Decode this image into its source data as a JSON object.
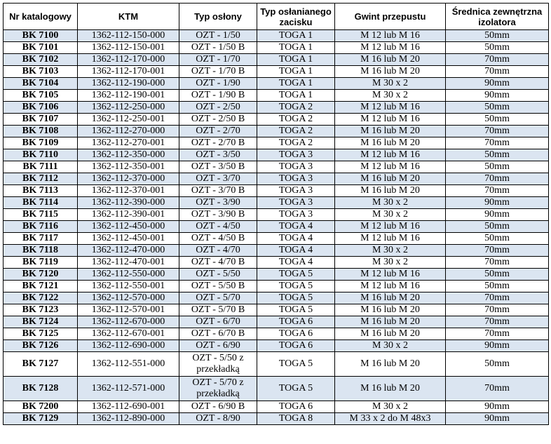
{
  "table": {
    "headers": [
      "Nr katalogowy",
      "KTM",
      "Typ osłony",
      "Typ osłanianego zacisku",
      "Gwint przepustu",
      "Średnica zewnętrzna izolatora"
    ],
    "rows": [
      [
        "BK 7100",
        "1362-112-150-000",
        "OZT - 1/50",
        "TOGA 1",
        "M 12 lub M 16",
        "50mm"
      ],
      [
        "BK 7101",
        "1362-112-150-001",
        "OZT - 1/50 B",
        "TOGA 1",
        "M 12 lub M 16",
        "50mm"
      ],
      [
        "BK 7102",
        "1362-112-170-000",
        "OZT - 1/70",
        "TOGA 1",
        "M 16 lub M 20",
        "70mm"
      ],
      [
        "BK 7103",
        "1362-112-170-001",
        "OZT - 1/70 B",
        "TOGA 1",
        "M 16 lub M 20",
        "70mm"
      ],
      [
        "BK 7104",
        "1362-112-190-000",
        "OZT - 1/90",
        "TOGA 1",
        "M 30 x 2",
        "90mm"
      ],
      [
        "BK 7105",
        "1362-112-190-001",
        "OZT - 1/90 B",
        "TOGA 1",
        "M 30 x 2",
        "90mm"
      ],
      [
        "BK 7106",
        "1362-112-250-000",
        "OZT - 2/50",
        "TOGA 2",
        "M 12 lub M 16",
        "50mm"
      ],
      [
        "BK 7107",
        "1362-112-250-001",
        "OZT - 2/50 B",
        "TOGA 2",
        "M 12 lub M 16",
        "50mm"
      ],
      [
        "BK 7108",
        "1362-112-270-000",
        "OZT - 2/70",
        "TOGA 2",
        "M 16 lub M 20",
        "70mm"
      ],
      [
        "BK 7109",
        "1362-112-270-001",
        "OZT - 2/70 B",
        "TOGA 2",
        "M 16 lub M 20",
        "70mm"
      ],
      [
        "BK 7110",
        "1362-112-350-000",
        "OZT - 3/50",
        "TOGA 3",
        "M 12 lub M 16",
        "50mm"
      ],
      [
        "BK 7111",
        "1362-112-350-001",
        "OZT - 3/50 B",
        "TOGA 3",
        "M 12 lub M 16",
        "50mm"
      ],
      [
        "BK 7112",
        "1362-112-370-000",
        "OZT - 3/70",
        "TOGA 3",
        "M 16 lub M 20",
        "70mm"
      ],
      [
        "BK 7113",
        "1362-112-370-001",
        "OZT - 3/70 B",
        "TOGA 3",
        "M 16 lub M 20",
        "70mm"
      ],
      [
        "BK 7114",
        "1362-112-390-000",
        "OZT - 3/90",
        "TOGA 3",
        "M 30 x 2",
        "90mm"
      ],
      [
        "BK 7115",
        "1362-112-390-001",
        "OZT - 3/90 B",
        "TOGA 3",
        "M 30 x 2",
        "90mm"
      ],
      [
        "BK 7116",
        "1362-112-450-000",
        "OZT - 4/50",
        "TOGA 4",
        "M 12 lub M 16",
        "50mm"
      ],
      [
        "BK 7117",
        "1362-112-450-001",
        "OZT - 4/50 B",
        "TOGA 4",
        "M 12 lub M 16",
        "50mm"
      ],
      [
        "BK 7118",
        "1362-112-470-000",
        "OZT - 4/70",
        "TOGA 4",
        "M 30 x 2",
        "70mm"
      ],
      [
        "BK 7119",
        "1362-112-470-001",
        "OZT - 4/70 B",
        "TOGA 4",
        "M 30 x 2",
        "70mm"
      ],
      [
        "BK 7120",
        "1362-112-550-000",
        "OZT - 5/50",
        "TOGA 5",
        "M 12 lub M 16",
        "50mm"
      ],
      [
        "BK 7121",
        "1362-112-550-001",
        "OZT - 5/50 B",
        "TOGA 5",
        "M 12 lub M 16",
        "50mm"
      ],
      [
        "BK 7122",
        "1362-112-570-000",
        "OZT - 5/70",
        "TOGA 5",
        "M 16 lub M 20",
        "70mm"
      ],
      [
        "BK 7123",
        "1362-112-570-001",
        "OZT - 5/70 B",
        "TOGA 5",
        "M 16 lub M 20",
        "70mm"
      ],
      [
        "BK 7124",
        "1362-112-670-000",
        "OZT - 6/70",
        "TOGA 6",
        "M 16 lub M 20",
        "70mm"
      ],
      [
        "BK 7125",
        "1362-112-670-001",
        "OZT - 6/70 B",
        "TOGA 6",
        "M 16 lub M 20",
        "70mm"
      ],
      [
        "BK 7126",
        "1362-112-690-000",
        "OZT - 6/90",
        "TOGA 6",
        "M 30 x 2",
        "90mm"
      ],
      [
        "BK 7127",
        "1362-112-551-000",
        "OZT - 5/50 z przekładką",
        "TOGA 5",
        "M 16 lub M 20",
        "50mm"
      ],
      [
        "BK 7128",
        "1362-112-571-000",
        "OZT - 5/70 z przekładką",
        "TOGA 5",
        "M 16 lub M 20",
        "70mm"
      ],
      [
        "BK 7200",
        "1362-112-690-001",
        "OZT - 6/90 B",
        "TOGA 6",
        "M 30 x 2",
        "90mm"
      ],
      [
        "BK 7129",
        "1362-112-890-000",
        "OZT - 8/90",
        "TOGA 8",
        "M 33 x 2 do M 48x3",
        "90mm"
      ]
    ]
  },
  "colors": {
    "stripe": "#dbe5f1",
    "plain": "#ffffff",
    "border": "#000000"
  }
}
